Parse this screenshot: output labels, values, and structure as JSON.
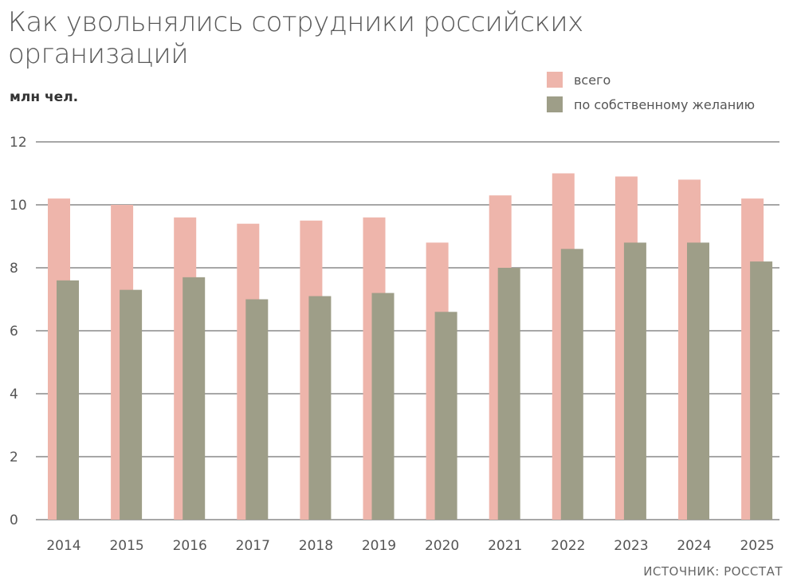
{
  "chart_data": {
    "type": "bar",
    "title": "Как увольнялись сотрудники российских организаций",
    "ylabel": "млн чел.",
    "source": "ИСТОЧНИК: РОССТАТ",
    "categories": [
      "2014",
      "2015",
      "2016",
      "2017",
      "2018",
      "2019",
      "2020",
      "2021",
      "2022",
      "2023",
      "2024",
      "2025"
    ],
    "series": [
      {
        "name": "всего",
        "color": "#eeb5ab",
        "values": [
          10.2,
          10.0,
          9.6,
          9.4,
          9.5,
          9.6,
          8.8,
          10.3,
          11.0,
          10.9,
          10.8,
          10.2
        ]
      },
      {
        "name": "по собственному желанию",
        "color": "#9e9e88",
        "values": [
          7.6,
          7.3,
          7.7,
          7.0,
          7.1,
          7.2,
          6.6,
          8.0,
          8.6,
          8.8,
          8.8,
          8.2
        ]
      }
    ],
    "ylim": [
      0,
      12
    ],
    "yticks": [
      "0",
      "2",
      "4",
      "6",
      "8",
      "10",
      "12"
    ],
    "grid": true,
    "legend": "top-right"
  }
}
